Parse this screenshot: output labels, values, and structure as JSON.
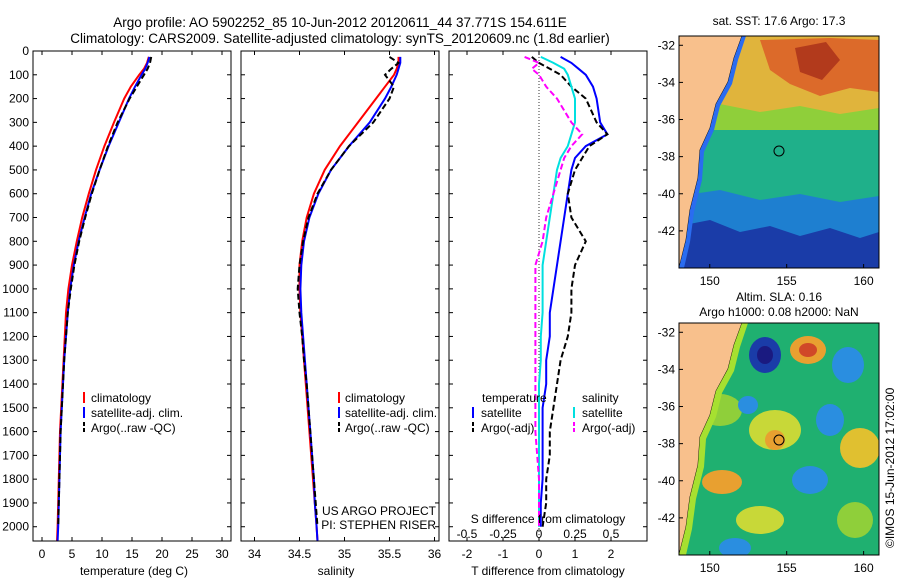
{
  "title": {
    "line1": "Argo profile: AO 5902252_85 10-Jun-2012 20120611_44 37.771S 154.611E",
    "line2": "Climatology: CARS2009. Satellite-adjusted climatology: synTS_20120609.nc (1.8d earlier)"
  },
  "colors": {
    "climatology": "#ff0000",
    "satellite": "#0000ff",
    "argo": "#000000",
    "sat_s": "#00e0e0",
    "argo_s": "#ff00ff",
    "land": "#f8c08c"
  },
  "depth_ticks": [
    0,
    100,
    200,
    300,
    400,
    500,
    600,
    700,
    800,
    900,
    1000,
    1100,
    1200,
    1300,
    1400,
    1500,
    1600,
    1700,
    1800,
    1900,
    2000
  ],
  "chart_data": [
    {
      "type": "line",
      "name": "temperature-panel",
      "xlabel": "temperature (deg C)",
      "x_ticks": [
        0,
        5,
        10,
        15,
        20,
        25,
        30
      ],
      "xlim": [
        -1.5,
        31.5
      ],
      "ylim": [
        0,
        2060
      ],
      "depth": [
        25,
        50,
        75,
        100,
        150,
        200,
        300,
        400,
        500,
        600,
        700,
        800,
        900,
        1000,
        1100,
        1200,
        1300,
        1400,
        1500,
        1600,
        1700,
        1800,
        1900,
        2000,
        2060
      ],
      "legend": [
        "climatology",
        "satellite-adj. clim.",
        "Argo(..raw -QC)"
      ],
      "series": [
        {
          "name": "climatology",
          "values": [
            17.8,
            17.5,
            17.0,
            16.2,
            14.8,
            13.7,
            12.0,
            10.4,
            9.0,
            7.8,
            6.7,
            5.8,
            5.0,
            4.4,
            4.0,
            3.8,
            3.6,
            3.4,
            3.2,
            3.0,
            2.9,
            2.8,
            2.7,
            2.6,
            2.5
          ]
        },
        {
          "name": "satellite-adj. clim.",
          "values": [
            17.9,
            17.6,
            17.2,
            16.6,
            15.5,
            14.5,
            12.8,
            11.1,
            9.6,
            8.2,
            7.1,
            6.1,
            5.3,
            4.7,
            4.3,
            4.0,
            3.7,
            3.5,
            3.3,
            3.1,
            3.0,
            2.9,
            2.8,
            2.7,
            2.6
          ]
        },
        {
          "name": "Argo(..raw -QC)",
          "values": [
            18.2,
            18.0,
            17.6,
            17.0,
            15.8,
            14.6,
            12.6,
            11.0,
            9.6,
            8.3,
            7.2,
            6.2,
            5.4,
            4.8,
            4.3,
            4.0,
            3.7,
            3.5,
            3.3,
            3.1,
            3.0,
            2.9,
            2.8,
            2.7
          ]
        }
      ]
    },
    {
      "type": "line",
      "name": "salinity-panel",
      "xlabel": "salinity",
      "x_ticks": [
        34,
        34.5,
        35,
        35.5,
        36
      ],
      "xlim": [
        33.85,
        36.05
      ],
      "ylim": [
        0,
        2060
      ],
      "depth": [
        25,
        50,
        75,
        100,
        150,
        200,
        300,
        400,
        500,
        600,
        700,
        800,
        900,
        1000,
        1100,
        1200,
        1300,
        1400,
        1500,
        1600,
        1700,
        1800,
        1900,
        2000,
        2060
      ],
      "legend": [
        "climatology",
        "satellite-adj. clim.",
        "Argo(..raw -QC)"
      ],
      "annotation": [
        "US ARGO PROJECT",
        "PI: STEPHEN RISER"
      ],
      "series": [
        {
          "name": "climatology",
          "values": [
            35.6,
            35.6,
            35.58,
            35.55,
            35.45,
            35.35,
            35.15,
            34.95,
            34.78,
            34.66,
            34.58,
            34.53,
            34.5,
            34.5,
            34.51,
            34.53,
            34.55,
            34.57,
            34.59,
            34.61,
            34.63,
            34.65,
            34.67,
            34.69,
            34.7
          ]
        },
        {
          "name": "satellite-adj. clim.",
          "values": [
            35.62,
            35.62,
            35.6,
            35.58,
            35.52,
            35.45,
            35.28,
            35.05,
            34.85,
            34.71,
            34.61,
            34.55,
            34.52,
            34.51,
            34.52,
            34.54,
            34.56,
            34.58,
            34.6,
            34.62,
            34.64,
            34.66,
            34.67,
            34.69,
            34.7
          ]
        },
        {
          "name": "Argo(..raw -QC)",
          "values": [
            35.5,
            35.6,
            35.52,
            35.45,
            35.55,
            35.5,
            35.32,
            35.05,
            34.85,
            34.7,
            34.6,
            34.54,
            34.5,
            34.48,
            34.5,
            34.53,
            34.55,
            34.58,
            34.6,
            34.62,
            34.64,
            34.66,
            34.68,
            34.7
          ]
        }
      ]
    },
    {
      "type": "line",
      "name": "difference-panel",
      "xlabel": "T difference from climatology",
      "x_ticks": [
        -2,
        -1,
        0,
        1,
        2
      ],
      "xlim": [
        -2.5,
        3.0
      ],
      "top_label": "S difference from climatology",
      "top_ticks": [
        "-0.5",
        "-0.25",
        "0",
        "0.25",
        "0.5"
      ],
      "top_tick_x": [
        -2,
        -1,
        0,
        1,
        2
      ],
      "ylim": [
        0,
        2060
      ],
      "depth": [
        25,
        50,
        75,
        100,
        150,
        200,
        300,
        350,
        400,
        450,
        500,
        600,
        700,
        800,
        900,
        1000,
        1100,
        1200,
        1300,
        1400,
        1500,
        1600,
        1700,
        1800,
        1900,
        2000
      ],
      "legend_temperature_title": "temperature",
      "legend_salinity_title": "salinity",
      "legend": [
        "satellite",
        "Argo(-adj)",
        "satellite",
        "Argo(-adj)"
      ],
      "series": [
        {
          "name": "T satellite",
          "values": [
            0.6,
            0.9,
            1.1,
            1.3,
            1.5,
            1.6,
            1.7,
            1.9,
            1.3,
            1.0,
            0.9,
            0.8,
            0.7,
            0.6,
            0.5,
            0.4,
            0.3,
            0.3,
            0.2,
            0.2,
            0.1,
            0.1,
            0.1,
            0.1,
            0.05,
            0.05
          ]
        },
        {
          "name": "T Argo(-adj)",
          "values": [
            -0.2,
            0.0,
            0.3,
            0.6,
            0.9,
            1.3,
            1.6,
            1.9,
            1.4,
            1.2,
            1.0,
            0.8,
            0.9,
            1.3,
            1.0,
            0.9,
            0.9,
            0.8,
            0.6,
            0.5,
            0.4,
            0.3,
            0.3,
            0.2,
            0.2,
            0.1
          ]
        },
        {
          "name": "S satellite",
          "values": [
            0.05,
            0.4,
            0.7,
            0.8,
            0.9,
            1.0,
            1.0,
            0.9,
            0.8,
            0.6,
            0.5,
            0.4,
            0.3,
            0.2,
            0.1,
            0.1,
            0.1,
            0.05,
            0.05,
            0.0,
            0.0,
            0.0,
            0.0,
            0.0,
            0.0,
            0.0
          ]
        },
        {
          "name": "S Argo(-adj)",
          "values": [
            -0.4,
            0.0,
            -0.2,
            0.0,
            0.2,
            0.5,
            0.9,
            1.2,
            0.9,
            0.7,
            0.6,
            0.4,
            0.2,
            0.1,
            -0.1,
            -0.1,
            -0.1,
            -0.1,
            -0.1,
            -0.1,
            -0.1,
            -0.1,
            -0.05,
            0.0,
            0.0,
            0.0
          ]
        }
      ]
    }
  ],
  "maps": [
    {
      "name": "sst-map",
      "title": "sat. SST: 17.6 Argo: 17.3",
      "x_ticks": [
        "150",
        "155",
        "160"
      ],
      "y_ticks": [
        "-32",
        "-34",
        "-36",
        "-38",
        "-40",
        "-42"
      ],
      "lon_range": [
        148,
        161
      ],
      "lat_range": [
        -44,
        -31.5
      ],
      "argo_lon": 154.611,
      "argo_lat": -37.771
    },
    {
      "name": "sla-map",
      "title_line1": "Altim. SLA: 0.16",
      "title_line2": "Argo h1000: 0.08 h2000: NaN",
      "x_ticks": [
        "150",
        "155",
        "160"
      ],
      "y_ticks": [
        "-32",
        "-34",
        "-36",
        "-38",
        "-40",
        "-42"
      ],
      "lon_range": [
        148,
        161
      ],
      "lat_range": [
        -44,
        -31.5
      ],
      "argo_lon": 154.611,
      "argo_lat": -37.771
    }
  ],
  "side_label": "©IMOS 15-Jun-2012 17:02:00"
}
